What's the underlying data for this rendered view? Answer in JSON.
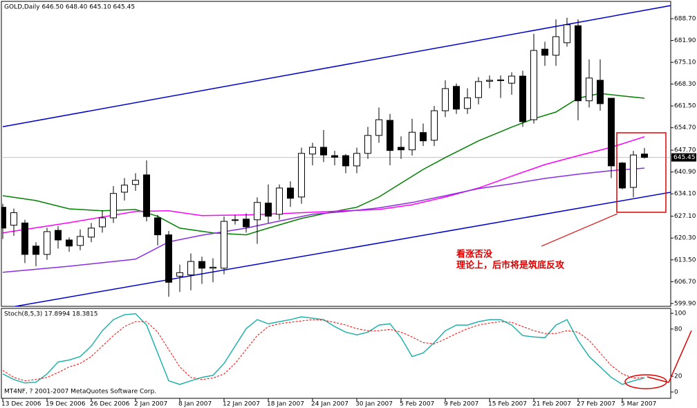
{
  "chart_data": [
    {
      "type": "candlestick",
      "title": "GOLD,Daily  646.50 648.40 645.10 645.45",
      "categories": [
        "13 Dec 2006",
        null,
        null,
        null,
        "19 Dec 2006",
        null,
        null,
        null,
        "26 Dec 2006",
        null,
        null,
        null,
        "2 Jan 2007",
        null,
        null,
        null,
        "8 Jan 2007",
        null,
        null,
        null,
        "12 Jan 2007",
        null,
        null,
        null,
        "18 Jan 2007",
        null,
        null,
        null,
        "24 Jan 2007",
        null,
        null,
        null,
        "30 Jan 2007",
        null,
        null,
        null,
        "5 Feb 2007",
        null,
        null,
        null,
        "9 Feb 2007",
        null,
        null,
        null,
        "15 Feb 2007",
        null,
        null,
        null,
        "21 Feb 2007",
        null,
        null,
        null,
        "27 Feb 2007",
        null,
        null,
        null,
        "5 Mar 2007",
        null,
        null
      ],
      "open": [
        629.9,
        624.3,
        625,
        617.8,
        615.2,
        622.7,
        619.7,
        618,
        620.6,
        623.8,
        626.6,
        634.6,
        637,
        640,
        626.6,
        621.3,
        608.4,
        608.8,
        613,
        610.9,
        610.9,
        625.8,
        626.2,
        626,
        631.2,
        627.7,
        635.9,
        633.1,
        646.5,
        648.6,
        646,
        646,
        642.8,
        646.7,
        652.3,
        657,
        648.6,
        647.8,
        653.2,
        650.8,
        660,
        667.6,
        660.7,
        664.1,
        669.2,
        669.4,
        668.6,
        670.8,
        657.2,
        679.2,
        677.3,
        681.2,
        686.5,
        663.1,
        669.5,
        663.9,
        643.7,
        636.1,
        646.5
      ],
      "high": [
        631,
        629.5,
        626,
        619,
        623.5,
        624,
        620.5,
        623,
        625,
        629,
        636.5,
        639,
        640.5,
        644.5,
        627.5,
        622.5,
        612,
        615.5,
        614.5,
        614,
        627,
        627.5,
        628,
        633,
        637,
        637,
        638,
        648.5,
        650,
        654,
        647.5,
        646.5,
        648.5,
        655,
        661,
        659,
        652,
        657.5,
        656,
        661.5,
        669.5,
        668.5,
        667,
        670.5,
        671,
        671,
        672,
        672.5,
        684,
        681.5,
        688.5,
        689,
        688.5,
        676,
        676,
        664,
        644,
        647.5,
        648.4
      ],
      "low": [
        620,
        621,
        612.5,
        611.5,
        613.5,
        617,
        616,
        616.5,
        619,
        622,
        625,
        632,
        635,
        625.5,
        618,
        602,
        603.5,
        604,
        606,
        606.5,
        609,
        624.5,
        622,
        618.5,
        625,
        626,
        630,
        631,
        643,
        644,
        643,
        640.5,
        640.5,
        645,
        650,
        643,
        645,
        646,
        649,
        649,
        658,
        659,
        659,
        662,
        667,
        664,
        665,
        655,
        656,
        674,
        674,
        680,
        657,
        661,
        660,
        639,
        635.5,
        633,
        645.1
      ],
      "close": [
        623.4,
        628.2,
        615.2,
        615.2,
        622.3,
        619.7,
        617.8,
        620.8,
        623.4,
        626.6,
        634.2,
        636.8,
        638.3,
        627,
        621.3,
        606.5,
        609.5,
        613,
        610.9,
        611.2,
        625.5,
        626,
        623.8,
        631.4,
        627.1,
        635.9,
        632.7,
        646.7,
        648.6,
        646.2,
        645.5,
        642.8,
        646.7,
        652.3,
        657.2,
        647.6,
        647.8,
        653.3,
        650.6,
        660,
        666.9,
        660.5,
        664,
        669.1,
        669.5,
        669.6,
        670.8,
        656.6,
        678.8,
        677.3,
        683.1,
        686.8,
        663.1,
        670.2,
        662.2,
        642.8,
        635.9,
        646.2,
        645.45
      ],
      "up_color": "#ffffff",
      "down_color": "#000000",
      "wick_color": "#000000",
      "current_price": {
        "value": 645.45,
        "label": "645.45"
      },
      "overlays": [
        {
          "color": "#008000",
          "x": [
            0,
            3,
            6,
            9,
            12,
            14,
            16,
            19,
            22,
            24,
            27,
            30,
            32,
            34,
            36,
            38,
            40,
            43,
            46,
            48,
            50,
            52,
            54,
            56,
            58
          ],
          "values": [
            633.5,
            632,
            629.4,
            628.8,
            629.2,
            627.1,
            623.4,
            621.9,
            621.3,
            623.4,
            626.4,
            628.6,
            629.9,
            633.1,
            637.4,
            641.7,
            645.4,
            650.6,
            654.9,
            657.5,
            659.6,
            663.9,
            665.4,
            664.6,
            663.9
          ]
        },
        {
          "color": "#ff00ff",
          "x": [
            0,
            6,
            12,
            15,
            18,
            22,
            25,
            31,
            34,
            37,
            40,
            43,
            46,
            49,
            52,
            55,
            58
          ],
          "values": [
            621.9,
            625.1,
            628.6,
            628.8,
            627.3,
            627.5,
            627.9,
            628.8,
            629.2,
            630.7,
            633.1,
            635.9,
            639.6,
            643.2,
            646,
            648.6,
            651.9
          ]
        },
        {
          "color": "#8a2be2",
          "x": [
            0,
            6,
            12,
            15,
            18,
            22,
            25,
            28,
            31,
            34,
            37,
            40,
            43,
            46,
            49,
            52,
            55,
            58
          ],
          "values": [
            609.6,
            611.5,
            613.7,
            619.1,
            621.2,
            623.4,
            625.6,
            627.7,
            628.6,
            629.7,
            631.4,
            633.5,
            635.7,
            637.2,
            638.9,
            640.2,
            641.3,
            642.1
          ]
        }
      ],
      "trendlines": [
        {
          "color": "#0000cc",
          "x": [
            0,
            60.4
          ],
          "values": [
            655.0,
            692.8
          ]
        },
        {
          "color": "#0000cc",
          "x": [
            0,
            60.4
          ],
          "values": [
            598.3,
            634.6
          ]
        }
      ],
      "annotations": [
        "看涨否没",
        "理论上，后市将是筑底反攻"
      ],
      "ylim": [
        599.0,
        694.1
      ],
      "yticks": [
        {
          "value": 688.7,
          "label": "688.70"
        },
        {
          "value": 681.9,
          "label": "681.90"
        },
        {
          "value": 675.1,
          "label": "675.10"
        },
        {
          "value": 668.3,
          "label": "668.30"
        },
        {
          "value": 661.5,
          "label": "661.50"
        },
        {
          "value": 654.7,
          "label": "654.70"
        },
        {
          "value": 647.7,
          "label": "647.70"
        },
        {
          "value": 640.9,
          "label": "640.90"
        },
        {
          "value": 634.1,
          "label": "634.10"
        },
        {
          "value": 627.1,
          "label": "627.10"
        },
        {
          "value": 620.3,
          "label": "620.30"
        },
        {
          "value": 613.5,
          "label": "613.50"
        },
        {
          "value": 606.7,
          "label": "606.70"
        },
        {
          "value": 599.9,
          "label": "599.90"
        }
      ]
    },
    {
      "type": "line",
      "title": "Stoch(8,5,3) 17.8994 18.3815",
      "watermark": "MT4NF, ? 2001-2007 MetaQuotes Software Corp.",
      "series": [
        {
          "color": "#20b2aa",
          "dashed": false,
          "values": [
            23,
            15.9,
            11.5,
            12.4,
            23,
            38.1,
            40.7,
            45.1,
            58.4,
            77.9,
            92,
            98.2,
            99.5,
            85,
            49.6,
            14.2,
            9.7,
            14.2,
            18.6,
            21.2,
            36.3,
            58.4,
            80.5,
            92,
            86.7,
            89.4,
            92,
            95.6,
            93.8,
            92,
            83.2,
            76.1,
            72.6,
            76.1,
            85,
            86.7,
            69,
            45.1,
            49.6,
            62.8,
            77.9,
            85,
            85,
            89.4,
            92,
            92,
            85,
            71.7,
            69.9,
            69,
            85,
            92,
            65.5,
            45.1,
            31.9,
            18.6,
            9.7,
            14.2,
            17.9
          ]
        },
        {
          "color": "#ff0000",
          "dashed": true,
          "values": [
            27.4,
            18.6,
            14.2,
            15.9,
            18.6,
            24.8,
            31.9,
            36.3,
            45.1,
            58.4,
            71.7,
            83.2,
            89.4,
            89.4,
            76.1,
            54,
            31.9,
            18.6,
            15.9,
            17.7,
            23,
            36.3,
            54,
            71.7,
            83.2,
            86.7,
            88.5,
            90.3,
            92,
            91.2,
            88.5,
            85,
            80.5,
            77.9,
            77.9,
            79.6,
            76.1,
            69.9,
            62.8,
            61.1,
            67.3,
            74.3,
            80.5,
            85,
            87.6,
            89.4,
            88.5,
            83.2,
            77.9,
            74.3,
            74.3,
            77.9,
            76.1,
            65.5,
            49.6,
            33.6,
            23,
            17.7,
            18.4
          ]
        }
      ],
      "ylim": [
        -8,
        106.2
      ],
      "yticks": [
        100,
        80,
        20,
        0
      ]
    }
  ]
}
